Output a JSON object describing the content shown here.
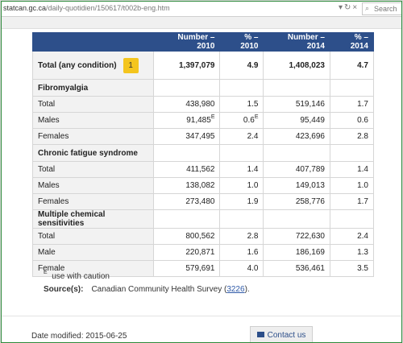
{
  "browser": {
    "url_host": "statcan.gc.ca",
    "url_path": "/daily-quotidien/150617/t002b-eng.htm",
    "search_placeholder": "Search"
  },
  "table": {
    "headers": [
      "",
      "Number – 2010",
      "% – 2010",
      "Number – 2014",
      "% – 2014"
    ],
    "total": {
      "label": "Total (any condition)",
      "badge": "1",
      "cells": [
        "1,397,079",
        "4.9",
        "1,408,023",
        "4.7"
      ]
    },
    "sections": [
      {
        "title": "Fibromyalgia",
        "rows": [
          {
            "label": "Total",
            "cells": [
              "438,980",
              "1.5",
              "519,146",
              "1.7"
            ]
          },
          {
            "label": "Males",
            "cells": [
              "91,485",
              "0.6",
              "95,449",
              "0.6"
            ],
            "flags": [
              "E",
              "E",
              "",
              ""
            ]
          },
          {
            "label": "Females",
            "cells": [
              "347,495",
              "2.4",
              "423,696",
              "2.8"
            ]
          }
        ]
      },
      {
        "title": "Chronic fatigue syndrome",
        "rows": [
          {
            "label": "Total",
            "cells": [
              "411,562",
              "1.4",
              "407,789",
              "1.4"
            ]
          },
          {
            "label": "Males",
            "cells": [
              "138,082",
              "1.0",
              "149,013",
              "1.0"
            ]
          },
          {
            "label": "Females",
            "cells": [
              "273,480",
              "1.9",
              "258,776",
              "1.7"
            ]
          }
        ]
      },
      {
        "title": "Multiple chemical sensitivities",
        "rows": [
          {
            "label": "Total",
            "cells": [
              "800,562",
              "2.8",
              "722,630",
              "2.4"
            ]
          },
          {
            "label": "Male",
            "cells": [
              "220,871",
              "1.6",
              "186,169",
              "1.3"
            ]
          },
          {
            "label": "Female",
            "cells": [
              "579,691",
              "4.0",
              "536,461",
              "3.5"
            ]
          }
        ]
      }
    ]
  },
  "notes": {
    "flag": "E",
    "flag_text": "use with caution",
    "source_label": "Source(s):",
    "source_text": "Canadian Community Health Survey (",
    "source_link": "3226",
    "source_close": ")."
  },
  "footer": {
    "date_modified": "Date modified: 2015-06-25",
    "contact_label": "Contact us"
  }
}
